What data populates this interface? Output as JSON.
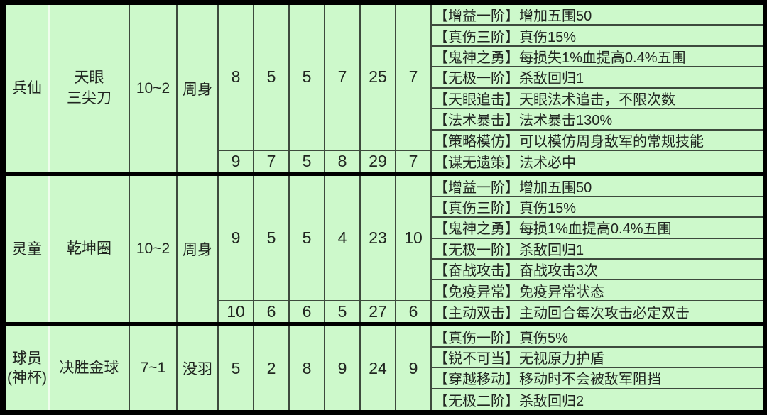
{
  "colors": {
    "frame": "#000000",
    "cell_bg": "#cdf9cb",
    "grid_line": "#3d4a3d",
    "light_line": "#effdec",
    "text": "#212621"
  },
  "rows": [
    {
      "name": "兵仙",
      "weapon": "天眼\n三尖刀",
      "range": "10~2",
      "reach": "周身",
      "stats": [
        "8",
        "5",
        "5",
        "7",
        "25",
        "7"
      ],
      "stats_alt": [
        "9",
        "7",
        "5",
        "8",
        "29",
        "7"
      ],
      "skills": [
        "【增益一阶】增加五围50",
        "【真伤三阶】真伤15%",
        "【鬼神之勇】每损失1%血提高0.4%五围",
        "【无极一阶】杀敌回归1",
        "【天眼追击】天眼法术追击，不限次数",
        "【法术暴击】法术暴击130%",
        "【策略模仿】可以模仿周身敌军的常规技能",
        "【谋无遗策】法术必中"
      ]
    },
    {
      "name": "灵童",
      "weapon": "乾坤圈",
      "range": "10~2",
      "reach": "周身",
      "stats": [
        "9",
        "5",
        "5",
        "4",
        "23",
        "10"
      ],
      "stats_alt": [
        "10",
        "6",
        "6",
        "5",
        "27",
        "6"
      ],
      "skills": [
        "【增益一阶】增加五围50",
        "【真伤三阶】真伤15%",
        "【鬼神之勇】每损1%血提高0.4%五围",
        "【无极一阶】杀敌回归1",
        "【奋战攻击】奋战攻击3次",
        "【免疫异常】免疫异常状态",
        "【主动双击】主动回合每次攻击必定双击"
      ]
    },
    {
      "name": "球员\n(神杯)",
      "weapon": "决胜金球",
      "range": "7~1",
      "reach": "没羽",
      "stats": [
        "5",
        "2",
        "8",
        "9",
        "24",
        "9"
      ],
      "skills": [
        "【真伤一阶】真伤5%",
        "【锐不可当】无视原力护盾",
        "【穿越移动】移动时不会被敌军阻挡",
        "【无极二阶】杀敌回归2"
      ]
    }
  ]
}
